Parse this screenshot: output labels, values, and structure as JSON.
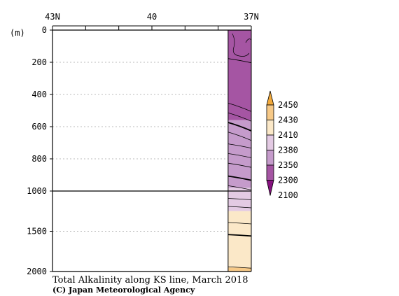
{
  "chart_data": {
    "type": "contour-section",
    "title": "Total Alkalinity along KS line, March 2018",
    "credit": "(C) Japan Meteorological Agency",
    "y_unit": "(m)",
    "x_ticks": [
      {
        "label": "43N",
        "lat": 43
      },
      {
        "label": "40",
        "lat": 40
      },
      {
        "label": "37N",
        "lat": 37
      }
    ],
    "x_range": [
      43,
      37
    ],
    "y_ticks": [
      {
        "label": "0",
        "depth": 0
      },
      {
        "label": "200",
        "depth": 200
      },
      {
        "label": "400",
        "depth": 400
      },
      {
        "label": "600",
        "depth": 600
      },
      {
        "label": "800",
        "depth": 800
      },
      {
        "label": "1000",
        "depth": 1000
      },
      {
        "label": "1500",
        "depth": 1500
      },
      {
        "label": "2000",
        "depth": 2000
      }
    ],
    "y_scale": "piecewise: 0-1000 m and 1000-2000 m compressed",
    "data_lat_range": [
      37.7,
      37
    ],
    "levels": [
      {
        "label": "2450",
        "color": "#f2a93b"
      },
      {
        "label": "2430",
        "color": "#f7c987"
      },
      {
        "label": "2410",
        "color": "#fbe8c8"
      },
      {
        "label": "2380",
        "color": "#e3cae3"
      },
      {
        "label": "2350",
        "color": "#c59bcb"
      },
      {
        "label": "2300",
        "color": "#a555a3"
      },
      {
        "label": "2100",
        "color": "#86117f"
      }
    ],
    "bands": [
      {
        "depth_top": 0,
        "depth_bottom": 560,
        "color": "#a555a3"
      },
      {
        "depth_top": 560,
        "depth_bottom": 980,
        "color": "#c59bcb"
      },
      {
        "depth_top": 980,
        "depth_bottom": 1250,
        "color": "#e3cae3"
      },
      {
        "depth_top": 1250,
        "depth_bottom": 1950,
        "color": "#fbe8c8"
      },
      {
        "depth_top": 1950,
        "depth_bottom": 2000,
        "color": "#f7c987"
      }
    ],
    "contour_depths": [
      {
        "depth": 190,
        "bold": false
      },
      {
        "depth": 480,
        "bold": false
      },
      {
        "depth": 540,
        "bold": false
      },
      {
        "depth": 600,
        "bold": true
      },
      {
        "depth": 660,
        "bold": false
      },
      {
        "depth": 720,
        "bold": false
      },
      {
        "depth": 780,
        "bold": false
      },
      {
        "depth": 840,
        "bold": false
      },
      {
        "depth": 920,
        "bold": true
      },
      {
        "depth": 980,
        "bold": false
      },
      {
        "depth": 1100,
        "bold": false
      },
      {
        "depth": 1200,
        "bold": false
      },
      {
        "depth": 1400,
        "bold": false
      },
      {
        "depth": 1550,
        "bold": true
      },
      {
        "depth": 1950,
        "bold": false
      }
    ],
    "grid": "dotted horizontal",
    "legend": "right"
  }
}
